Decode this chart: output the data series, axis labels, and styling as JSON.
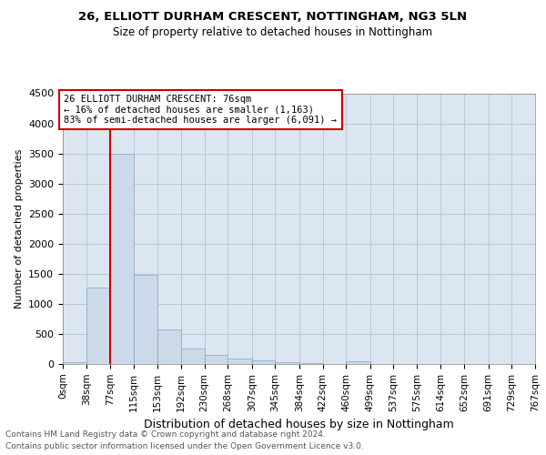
{
  "title": "26, ELLIOTT DURHAM CRESCENT, NOTTINGHAM, NG3 5LN",
  "subtitle": "Size of property relative to detached houses in Nottingham",
  "xlabel": "Distribution of detached houses by size in Nottingham",
  "ylabel": "Number of detached properties",
  "bar_color": "#ccd9e8",
  "bar_edge_color": "#7fa8cc",
  "property_line_color": "#cc0000",
  "annotation_box_edge_color": "#cc0000",
  "background_color": "#dce6f0",
  "grid_color": "#b8c8d8",
  "footer_line1": "Contains HM Land Registry data © Crown copyright and database right 2024.",
  "footer_line2": "Contains public sector information licensed under the Open Government Licence v3.0.",
  "annotation_text_line1": "26 ELLIOTT DURHAM CRESCENT: 76sqm",
  "annotation_text_line2": "← 16% of detached houses are smaller (1,163)",
  "annotation_text_line3": "83% of semi-detached houses are larger (6,091) →",
  "bin_edges": [
    0,
    38,
    77,
    115,
    153,
    192,
    230,
    268,
    307,
    345,
    384,
    422,
    460,
    499,
    537,
    575,
    614,
    652,
    691,
    729,
    767
  ],
  "bin_labels": [
    "0sqm",
    "38sqm",
    "77sqm",
    "115sqm",
    "153sqm",
    "192sqm",
    "230sqm",
    "268sqm",
    "307sqm",
    "345sqm",
    "384sqm",
    "422sqm",
    "460sqm",
    "499sqm",
    "537sqm",
    "575sqm",
    "614sqm",
    "652sqm",
    "691sqm",
    "729sqm",
    "767sqm"
  ],
  "bar_heights": [
    30,
    1275,
    3500,
    1480,
    580,
    260,
    150,
    95,
    60,
    30,
    15,
    5,
    50,
    5,
    0,
    0,
    0,
    0,
    0,
    0
  ],
  "property_line_x": 77,
  "ylim": [
    0,
    4500
  ],
  "yticks": [
    0,
    500,
    1000,
    1500,
    2000,
    2500,
    3000,
    3500,
    4000,
    4500
  ]
}
